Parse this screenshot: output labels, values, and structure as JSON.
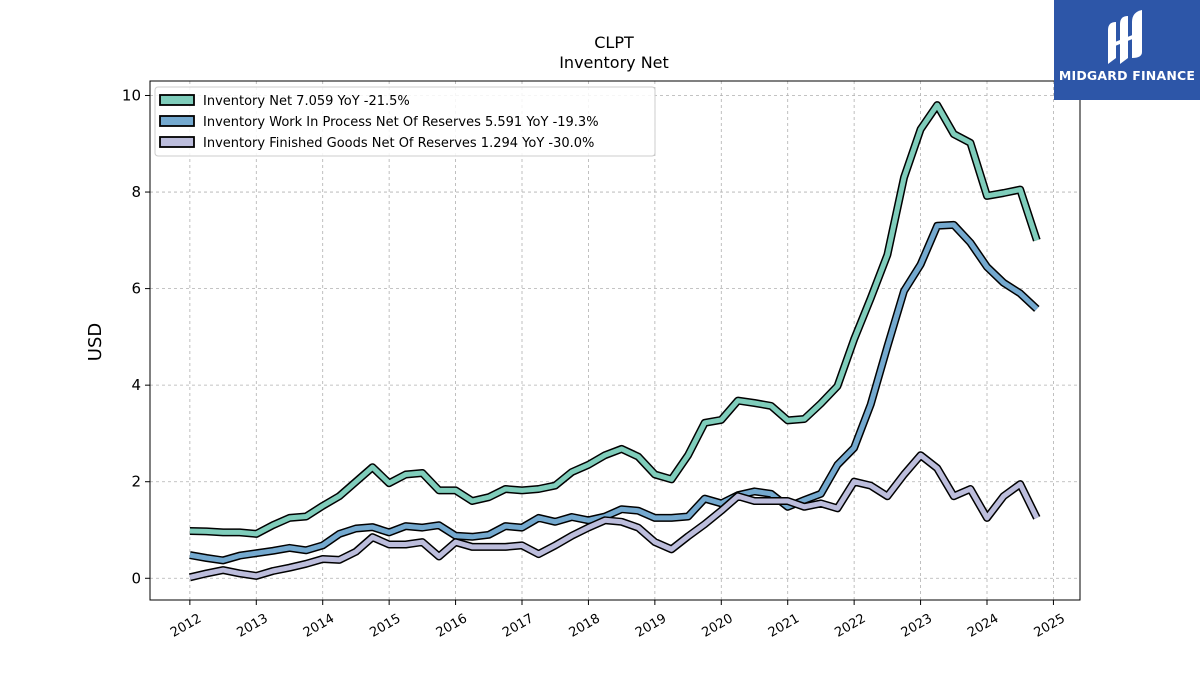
{
  "chart_data": {
    "type": "line",
    "title": "CLPT",
    "subtitle": "Inventory Net",
    "ylabel": "USD",
    "ylim": [
      -0.45,
      10.3
    ],
    "xlim": [
      2011.4,
      2025.4
    ],
    "yticks": [
      0,
      2,
      4,
      6,
      8,
      10
    ],
    "xticks": [
      2012,
      2013,
      2014,
      2015,
      2016,
      2017,
      2018,
      2019,
      2020,
      2021,
      2022,
      2023,
      2024,
      2025
    ],
    "grid": true,
    "legend_position": "top-left",
    "x": [
      2012.0,
      2012.25,
      2012.5,
      2012.75,
      2013.0,
      2013.25,
      2013.5,
      2013.75,
      2014.0,
      2014.25,
      2014.5,
      2014.75,
      2015.0,
      2015.25,
      2015.5,
      2015.75,
      2016.0,
      2016.25,
      2016.5,
      2016.75,
      2017.0,
      2017.25,
      2017.5,
      2017.75,
      2018.0,
      2018.25,
      2018.5,
      2018.75,
      2019.0,
      2019.25,
      2019.5,
      2019.75,
      2020.0,
      2020.25,
      2020.5,
      2020.75,
      2021.0,
      2021.25,
      2021.5,
      2021.75,
      2022.0,
      2022.25,
      2022.5,
      2022.75,
      2023.0,
      2023.25,
      2023.5,
      2023.75,
      2024.0,
      2024.25,
      2024.5,
      2024.75
    ],
    "series": [
      {
        "name": "Inventory Net",
        "legend_label": "Inventory Net  7.059 YoY -21.5%",
        "color": "#7fcdbb",
        "values": [
          0.98,
          0.97,
          0.95,
          0.95,
          0.92,
          1.1,
          1.25,
          1.28,
          1.5,
          1.7,
          2.0,
          2.3,
          1.97,
          2.15,
          2.18,
          1.82,
          1.82,
          1.6,
          1.68,
          1.85,
          1.82,
          1.85,
          1.92,
          2.2,
          2.35,
          2.55,
          2.68,
          2.52,
          2.15,
          2.05,
          2.55,
          3.22,
          3.28,
          3.68,
          3.63,
          3.57,
          3.27,
          3.3,
          3.62,
          3.98,
          4.95,
          5.8,
          6.7,
          8.3,
          9.3,
          9.8,
          9.2,
          9.02,
          7.92,
          7.98,
          8.05,
          7.0
        ]
      },
      {
        "name": "Inventory Work In Process Net Of Reserves",
        "legend_label": "Inventory Work In Process Net Of Reserves  5.591 YoY -19.3%",
        "color": "#74a9cf",
        "values": [
          0.48,
          0.42,
          0.37,
          0.47,
          0.52,
          0.57,
          0.63,
          0.58,
          0.68,
          0.92,
          1.03,
          1.06,
          0.95,
          1.08,
          1.05,
          1.1,
          0.88,
          0.86,
          0.9,
          1.08,
          1.05,
          1.25,
          1.17,
          1.27,
          1.2,
          1.28,
          1.43,
          1.4,
          1.25,
          1.25,
          1.28,
          1.65,
          1.55,
          1.72,
          1.8,
          1.75,
          1.48,
          1.62,
          1.75,
          2.35,
          2.7,
          3.6,
          4.8,
          5.95,
          6.5,
          7.3,
          7.32,
          6.95,
          6.45,
          6.12,
          5.9,
          5.58
        ]
      },
      {
        "name": "Inventory Finished Goods Net Of Reserves",
        "legend_label": "Inventory Finished Goods Net Of Reserves  1.294 YoY -30.0%",
        "color": "#bcbddc",
        "values": [
          0.02,
          0.1,
          0.17,
          0.1,
          0.05,
          0.15,
          0.22,
          0.3,
          0.4,
          0.38,
          0.55,
          0.85,
          0.7,
          0.7,
          0.75,
          0.45,
          0.75,
          0.65,
          0.65,
          0.65,
          0.68,
          0.5,
          0.68,
          0.88,
          1.05,
          1.2,
          1.17,
          1.05,
          0.75,
          0.6,
          0.87,
          1.12,
          1.4,
          1.7,
          1.6,
          1.6,
          1.6,
          1.48,
          1.55,
          1.45,
          2.0,
          1.92,
          1.7,
          2.15,
          2.55,
          2.28,
          1.7,
          1.85,
          1.25,
          1.7,
          1.95,
          1.25
        ]
      }
    ]
  },
  "logo": {
    "text": "MIDGARD FINANCE",
    "background": "#2d56a8"
  }
}
